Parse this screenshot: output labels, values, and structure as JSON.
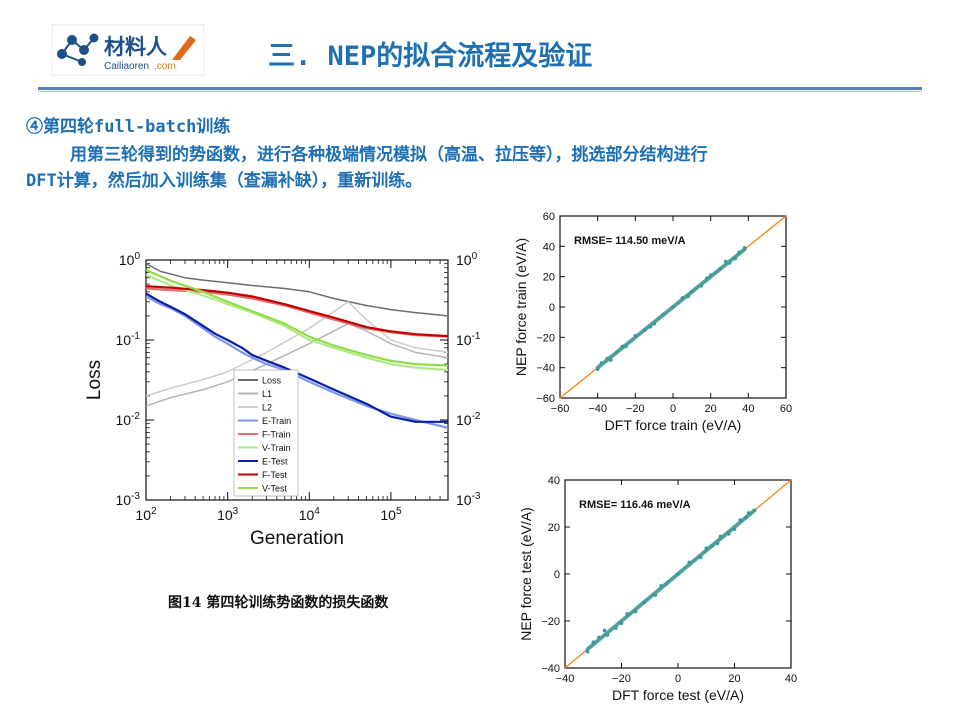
{
  "header": {
    "logo": {
      "name": "材料人",
      "subtitle": "Cailiaoren",
      "subtitle_suffix": ".com"
    },
    "title": "三. NEP的拟合流程及验证"
  },
  "body": {
    "heading": "④第四轮full-batch训练",
    "paragraph_line1": "用第三轮得到的势函数，进行各种极端情况模拟（高温、拉压等），挑选部分结构进行",
    "paragraph_line2": "DFT计算，然后加入训练集（查漏补缺），重新训练。"
  },
  "caption": "图14  第四轮训练势函数的损失函数",
  "chart_data": [
    {
      "type": "line",
      "xlabel": "Generation",
      "ylabel": "Loss",
      "xscale": "log",
      "yscale": "log",
      "xlim": [
        100,
        500000
      ],
      "ylim": [
        0.001,
        1
      ],
      "x_tick_labels": [
        "10^2",
        "10^3",
        "10^4",
        "10^5"
      ],
      "y_tick_labels": [
        "10^0",
        "10^-1",
        "10^-2",
        "10^-3"
      ],
      "legend_position": "lower-left",
      "series": [
        {
          "name": "Loss",
          "color": "#6e6e6e",
          "x": [
            100,
            150,
            300,
            500,
            1000,
            2000,
            5000,
            10000,
            20000,
            50000,
            100000,
            200000,
            500000
          ],
          "y": [
            0.9,
            0.72,
            0.6,
            0.56,
            0.52,
            0.48,
            0.44,
            0.4,
            0.33,
            0.27,
            0.24,
            0.22,
            0.2
          ]
        },
        {
          "name": "L1",
          "color": "#b4b4b4",
          "x": [
            100,
            200,
            500,
            1000,
            3000,
            10000,
            20000,
            30000,
            50000,
            100000,
            200000,
            500000
          ],
          "y": [
            0.015,
            0.019,
            0.024,
            0.03,
            0.05,
            0.09,
            0.13,
            0.16,
            0.13,
            0.09,
            0.07,
            0.06
          ]
        },
        {
          "name": "L2",
          "color": "#cccccc",
          "x": [
            100,
            200,
            500,
            1000,
            3000,
            10000,
            30000,
            50000,
            100000,
            200000,
            500000
          ],
          "y": [
            0.02,
            0.025,
            0.032,
            0.04,
            0.07,
            0.14,
            0.3,
            0.18,
            0.1,
            0.08,
            0.07
          ]
        },
        {
          "name": "E-Train",
          "color": "#7f95e8",
          "x": [
            100,
            150,
            200,
            300,
            500,
            700,
            1000,
            1500,
            2000,
            3000,
            5000,
            10000,
            20000,
            50000,
            100000,
            200000,
            500000
          ],
          "y": [
            0.35,
            0.28,
            0.25,
            0.2,
            0.14,
            0.11,
            0.09,
            0.07,
            0.06,
            0.05,
            0.042,
            0.03,
            0.022,
            0.015,
            0.012,
            0.01,
            0.008
          ]
        },
        {
          "name": "F-Train",
          "color": "#e07070",
          "x": [
            100,
            200,
            500,
            1000,
            2000,
            5000,
            10000,
            20000,
            50000,
            100000,
            200000,
            500000
          ],
          "y": [
            0.44,
            0.42,
            0.4,
            0.37,
            0.33,
            0.27,
            0.22,
            0.18,
            0.14,
            0.125,
            0.115,
            0.11
          ]
        },
        {
          "name": "V-Train",
          "color": "#b2ea80",
          "x": [
            100,
            200,
            500,
            1000,
            2000,
            5000,
            10000,
            20000,
            50000,
            100000,
            200000,
            500000
          ],
          "y": [
            0.65,
            0.48,
            0.36,
            0.28,
            0.22,
            0.15,
            0.1,
            0.08,
            0.06,
            0.05,
            0.045,
            0.042
          ]
        },
        {
          "name": "E-Test",
          "color": "#0a1ea8",
          "x": [
            100,
            150,
            200,
            300,
            500,
            700,
            1000,
            1500,
            2000,
            3000,
            5000,
            10000,
            20000,
            50000,
            100000,
            200000,
            500000
          ],
          "y": [
            0.38,
            0.3,
            0.26,
            0.21,
            0.15,
            0.12,
            0.1,
            0.08,
            0.065,
            0.055,
            0.045,
            0.033,
            0.024,
            0.016,
            0.011,
            0.0095,
            0.0095
          ]
        },
        {
          "name": "F-Test",
          "color": "#c00000",
          "x": [
            100,
            200,
            500,
            1000,
            2000,
            5000,
            10000,
            20000,
            50000,
            100000,
            200000,
            500000
          ],
          "y": [
            0.47,
            0.45,
            0.42,
            0.39,
            0.35,
            0.28,
            0.23,
            0.19,
            0.145,
            0.128,
            0.118,
            0.112
          ]
        },
        {
          "name": "V-Test",
          "color": "#8fdc4c",
          "x": [
            100,
            200,
            500,
            1000,
            2000,
            5000,
            10000,
            20000,
            50000,
            100000,
            200000,
            500000
          ],
          "y": [
            0.75,
            0.55,
            0.4,
            0.3,
            0.23,
            0.16,
            0.11,
            0.085,
            0.065,
            0.055,
            0.05,
            0.048
          ]
        }
      ]
    },
    {
      "type": "scatter",
      "xlabel": "DFT force train (eV/A)",
      "ylabel": "NEP force train (eV/A)",
      "annotation": "RMSE= 114.50 meV/A",
      "xlim": [
        -60,
        60
      ],
      "ylim": [
        -60,
        60
      ],
      "ticks": [
        -60,
        -40,
        -20,
        0,
        20,
        40,
        60
      ],
      "diagonal_color": "#f08a24",
      "point_color": "#3a9a9a",
      "points": [
        [
          -40,
          -41
        ],
        [
          -35,
          -34
        ],
        [
          -30,
          -30
        ],
        [
          -25,
          -26
        ],
        [
          -20,
          -19
        ],
        [
          -15,
          -15
        ],
        [
          -10,
          -11
        ],
        [
          -5,
          -5
        ],
        [
          0,
          0
        ],
        [
          5,
          6
        ],
        [
          10,
          10
        ],
        [
          15,
          14
        ],
        [
          20,
          21
        ],
        [
          25,
          25
        ],
        [
          30,
          29
        ],
        [
          35,
          36
        ],
        [
          38,
          39
        ],
        [
          -38,
          -37
        ],
        [
          -33,
          -35
        ],
        [
          -27,
          -26
        ],
        [
          -12,
          -13
        ],
        [
          8,
          7
        ],
        [
          18,
          19
        ],
        [
          28,
          30
        ],
        [
          33,
          32
        ]
      ]
    },
    {
      "type": "scatter",
      "xlabel": "DFT force test (eV/A)",
      "ylabel": "NEP force test (eV/A)",
      "annotation": "RMSE= 116.46 meV/A",
      "xlim": [
        -40,
        40
      ],
      "ylim": [
        -40,
        40
      ],
      "ticks": [
        -40,
        -20,
        0,
        20,
        40
      ],
      "diagonal_color": "#f08a24",
      "point_color": "#3a9a9a",
      "points": [
        [
          -32,
          -33
        ],
        [
          -28,
          -27
        ],
        [
          -25,
          -26
        ],
        [
          -22,
          -23
        ],
        [
          -18,
          -17
        ],
        [
          -15,
          -16
        ],
        [
          -12,
          -12
        ],
        [
          -8,
          -9
        ],
        [
          -4,
          -4
        ],
        [
          0,
          0
        ],
        [
          4,
          5
        ],
        [
          8,
          7
        ],
        [
          12,
          12
        ],
        [
          15,
          16
        ],
        [
          18,
          17
        ],
        [
          22,
          23
        ],
        [
          25,
          26
        ],
        [
          -30,
          -29
        ],
        [
          -20,
          -21
        ],
        [
          -6,
          -5
        ],
        [
          10,
          11
        ],
        [
          20,
          19
        ],
        [
          24,
          24
        ],
        [
          27,
          27
        ],
        [
          -26,
          -24
        ],
        [
          14,
          13
        ]
      ]
    }
  ]
}
